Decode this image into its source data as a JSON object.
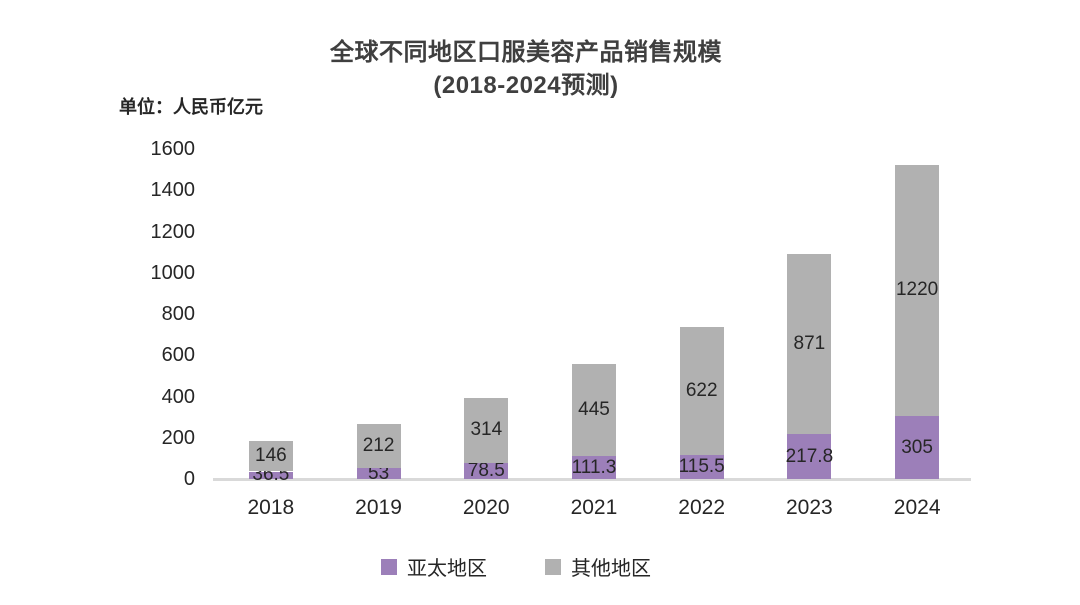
{
  "chart_data": {
    "type": "bar",
    "stacked": true,
    "title": "全球不同地区口服美容产品销售规模",
    "subtitle": "(2018-2024预测)",
    "unit_label": "单位：人民币亿元",
    "categories": [
      "2018",
      "2019",
      "2020",
      "2021",
      "2022",
      "2023",
      "2024"
    ],
    "series": [
      {
        "name": "亚太地区",
        "color": "#9C7FB9",
        "values": [
          36.5,
          53,
          78.5,
          111.3,
          115.5,
          217.8,
          305
        ]
      },
      {
        "name": "其他地区",
        "color": "#B1B1B1",
        "values": [
          146,
          212,
          314,
          445,
          622,
          871,
          1220
        ]
      }
    ],
    "ylim": [
      0,
      1600
    ],
    "yticks": [
      0,
      200,
      400,
      600,
      800,
      1000,
      1200,
      1400,
      1600
    ],
    "grid": false,
    "legend_position": "bottom",
    "label_color": "#262626",
    "axis_line_color": "#D9D9D9"
  }
}
